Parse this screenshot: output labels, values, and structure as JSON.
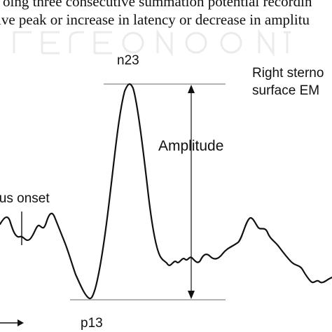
{
  "caption": {
    "line1": "oing three consecutive summation potential recordin",
    "line2": "ive peak or increase in latency or decrease in amplitu"
  },
  "labels": {
    "peak_top": "n23",
    "peak_bottom": "p13",
    "amplitude": "Amplitude",
    "right_line1": "Right sterno",
    "right_line2": "surface EM",
    "stimulus": "ulus onset"
  },
  "colors": {
    "trace": "#111111",
    "guide": "#888888"
  }
}
